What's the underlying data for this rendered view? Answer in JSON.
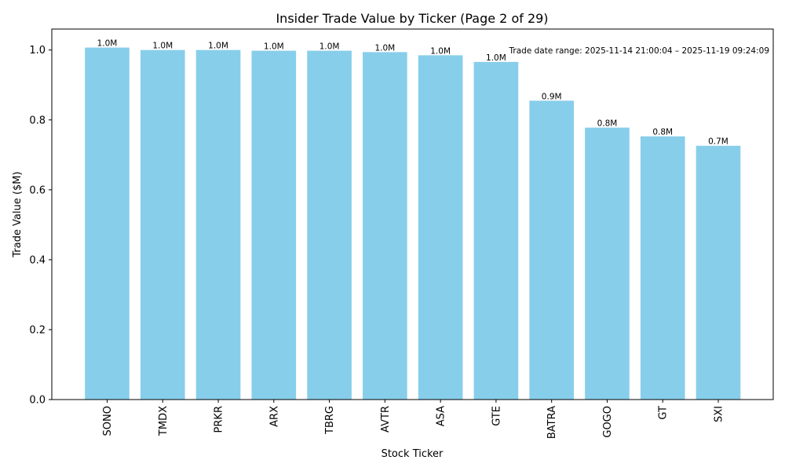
{
  "chart_data": {
    "type": "bar",
    "title": "Insider Trade Value by Ticker (Page 2 of 29)",
    "xlabel": "Stock Ticker",
    "ylabel": "Trade Value ($M)",
    "ylim": [
      0,
      1.06
    ],
    "yticks": [
      "0.0",
      "0.2",
      "0.4",
      "0.6",
      "0.8",
      "1.0"
    ],
    "ytick_values": [
      0,
      0.2,
      0.4,
      0.6,
      0.8,
      1.0
    ],
    "categories": [
      "SONO",
      "TMDX",
      "PRKR",
      "ARX",
      "TBRG",
      "AVTR",
      "ASA",
      "GTE",
      "BATRA",
      "GOGO",
      "GT",
      "SXI"
    ],
    "values": [
      1.007,
      1.0,
      1.0,
      0.998,
      0.998,
      0.994,
      0.985,
      0.966,
      0.855,
      0.778,
      0.753,
      0.726
    ],
    "data_labels": [
      "1.0M",
      "1.0M",
      "1.0M",
      "1.0M",
      "1.0M",
      "1.0M",
      "1.0M",
      "1.0M",
      "0.9M",
      "0.8M",
      "0.8M",
      "0.7M"
    ],
    "bar_color": "#87ceeb",
    "grid": false,
    "annotation": "Trade date range: 2025-11-14 21:00:04 – 2025-11-19 09:24:09"
  }
}
